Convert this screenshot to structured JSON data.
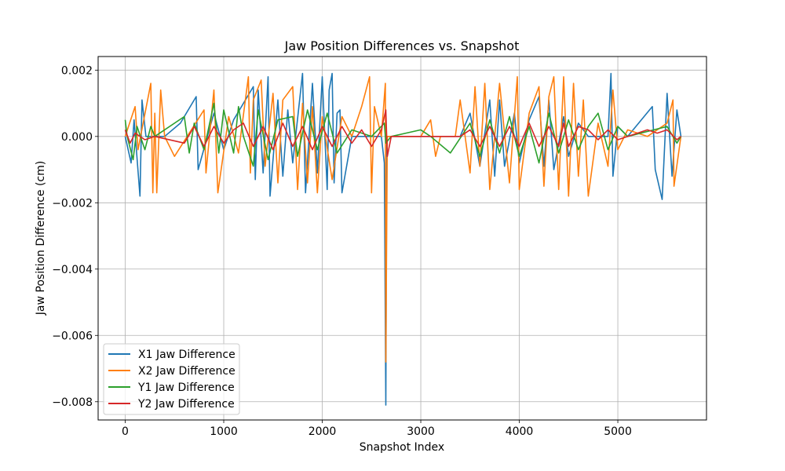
{
  "chart_data": {
    "type": "line",
    "title": "Jaw Position Differences vs. Snapshot",
    "xlabel": "Snapshot Index",
    "ylabel": "Jaw Position Difference (cm)",
    "xlim": [
      -275,
      5900
    ],
    "ylim": [
      -0.00855,
      0.00241
    ],
    "grid": true,
    "legend_position": "lower-left",
    "x_ticks": [
      0,
      1000,
      2000,
      3000,
      4000,
      5000
    ],
    "x_tick_labels": [
      "0",
      "1000",
      "2000",
      "3000",
      "4000",
      "5000"
    ],
    "y_ticks": [
      0.002,
      0.0,
      -0.002,
      -0.004,
      -0.006,
      -0.008
    ],
    "y_tick_labels": [
      "0.002",
      "0.000",
      "−0.002",
      "−0.004",
      "−0.006",
      "−0.008"
    ],
    "series": [
      {
        "name": "X1 Jaw Difference",
        "color": "#1f77b4",
        "points": [
          [
            0,
            0.0
          ],
          [
            60,
            -0.0008
          ],
          [
            90,
            0.0005
          ],
          [
            150,
            -0.0018
          ],
          [
            170,
            0.0011
          ],
          [
            210,
            0.0
          ],
          [
            400,
            0.0
          ],
          [
            560,
            0.0004
          ],
          [
            720,
            0.0012
          ],
          [
            740,
            -0.001
          ],
          [
            900,
            0.0007
          ],
          [
            1000,
            -0.0004
          ],
          [
            1100,
            0.0005
          ],
          [
            1300,
            0.0015
          ],
          [
            1320,
            -0.0013
          ],
          [
            1350,
            0.0014
          ],
          [
            1400,
            -0.0011
          ],
          [
            1450,
            0.0018
          ],
          [
            1470,
            -0.0018
          ],
          [
            1550,
            0.0011
          ],
          [
            1600,
            -0.0012
          ],
          [
            1650,
            0.0008
          ],
          [
            1700,
            -0.0008
          ],
          [
            1800,
            0.0019
          ],
          [
            1830,
            -0.0017
          ],
          [
            1900,
            0.0016
          ],
          [
            1950,
            -0.0011
          ],
          [
            2000,
            0.0018
          ],
          [
            2050,
            -0.0016
          ],
          [
            2070,
            0.0014
          ],
          [
            2100,
            0.0019
          ],
          [
            2120,
            -0.0014
          ],
          [
            2150,
            0.0007
          ],
          [
            2180,
            0.0008
          ],
          [
            2200,
            -0.0017
          ],
          [
            2300,
            0.0
          ],
          [
            2600,
            0.0
          ],
          [
            2630,
            -0.0008
          ],
          [
            2645,
            -0.0081
          ],
          [
            2655,
            0.0
          ],
          [
            2900,
            0.0
          ],
          [
            3400,
            0.0
          ],
          [
            3500,
            0.0007
          ],
          [
            3600,
            -0.0009
          ],
          [
            3700,
            0.0011
          ],
          [
            3750,
            -0.0012
          ],
          [
            3800,
            0.0011
          ],
          [
            3850,
            -0.0009
          ],
          [
            3950,
            0.0007
          ],
          [
            4000,
            -0.0008
          ],
          [
            4100,
            0.0005
          ],
          [
            4200,
            0.0012
          ],
          [
            4250,
            -0.0009
          ],
          [
            4300,
            0.0011
          ],
          [
            4350,
            -0.001
          ],
          [
            4450,
            0.0006
          ],
          [
            4500,
            -0.0006
          ],
          [
            4600,
            0.0004
          ],
          [
            4700,
            0.0
          ],
          [
            4900,
            0.0
          ],
          [
            4930,
            0.0019
          ],
          [
            4950,
            -0.0012
          ],
          [
            5000,
            0.0003
          ],
          [
            5100,
            0.0
          ],
          [
            5350,
            0.0009
          ],
          [
            5380,
            -0.001
          ],
          [
            5450,
            -0.0019
          ],
          [
            5500,
            0.0013
          ],
          [
            5550,
            -0.0012
          ],
          [
            5600,
            0.0008
          ],
          [
            5640,
            0.0
          ]
        ]
      },
      {
        "name": "X2 Jaw Difference",
        "color": "#ff7f0e",
        "points": [
          [
            0,
            0.0
          ],
          [
            100,
            0.0009
          ],
          [
            130,
            -0.0004
          ],
          [
            260,
            0.0016
          ],
          [
            280,
            -0.0017
          ],
          [
            300,
            0.0007
          ],
          [
            320,
            -0.0017
          ],
          [
            360,
            0.0014
          ],
          [
            400,
            0.0
          ],
          [
            500,
            -0.0006
          ],
          [
            800,
            0.0008
          ],
          [
            820,
            -0.0011
          ],
          [
            900,
            0.0014
          ],
          [
            940,
            -0.0017
          ],
          [
            1050,
            0.0006
          ],
          [
            1150,
            -0.0005
          ],
          [
            1250,
            0.0018
          ],
          [
            1270,
            -0.0011
          ],
          [
            1300,
            0.0011
          ],
          [
            1380,
            0.0017
          ],
          [
            1420,
            -0.0009
          ],
          [
            1500,
            0.0013
          ],
          [
            1550,
            -0.0014
          ],
          [
            1600,
            0.0011
          ],
          [
            1700,
            0.0015
          ],
          [
            1750,
            -0.0016
          ],
          [
            1800,
            0.001
          ],
          [
            1850,
            -0.0014
          ],
          [
            1900,
            0.0009
          ],
          [
            1950,
            -0.0017
          ],
          [
            2000,
            0.0006
          ],
          [
            2100,
            -0.0013
          ],
          [
            2200,
            0.0006
          ],
          [
            2300,
            0.0
          ],
          [
            2400,
            0.0009
          ],
          [
            2480,
            0.0018
          ],
          [
            2500,
            -0.0017
          ],
          [
            2530,
            0.0009
          ],
          [
            2600,
            0.0
          ],
          [
            2640,
            0.0016
          ],
          [
            2645,
            -0.0068
          ],
          [
            2660,
            0.0
          ],
          [
            3000,
            0.0
          ],
          [
            3100,
            0.0005
          ],
          [
            3150,
            -0.0006
          ],
          [
            3200,
            0.0
          ],
          [
            3350,
            0.0
          ],
          [
            3400,
            0.0011
          ],
          [
            3500,
            -0.0011
          ],
          [
            3550,
            0.0015
          ],
          [
            3600,
            -0.0009
          ],
          [
            3650,
            0.0016
          ],
          [
            3700,
            -0.0016
          ],
          [
            3800,
            0.0016
          ],
          [
            3900,
            -0.0014
          ],
          [
            3980,
            0.0018
          ],
          [
            4000,
            -0.0016
          ],
          [
            4100,
            0.0007
          ],
          [
            4200,
            0.0015
          ],
          [
            4250,
            -0.0015
          ],
          [
            4300,
            0.0012
          ],
          [
            4350,
            0.0018
          ],
          [
            4400,
            -0.0016
          ],
          [
            4450,
            0.0018
          ],
          [
            4500,
            -0.0018
          ],
          [
            4550,
            0.0016
          ],
          [
            4600,
            -0.0012
          ],
          [
            4650,
            0.0011
          ],
          [
            4700,
            -0.0018
          ],
          [
            4800,
            0.0004
          ],
          [
            4900,
            -0.0009
          ],
          [
            4950,
            0.0014
          ],
          [
            5000,
            -0.0004
          ],
          [
            5100,
            0.0002
          ],
          [
            5300,
            0.0
          ],
          [
            5500,
            0.0004
          ],
          [
            5560,
            0.0011
          ],
          [
            5570,
            -0.0015
          ],
          [
            5640,
            0.0
          ]
        ]
      },
      {
        "name": "Y1 Jaw Difference",
        "color": "#2ca02c",
        "points": [
          [
            0,
            0.0005
          ],
          [
            20,
            0.0
          ],
          [
            80,
            -0.0007
          ],
          [
            120,
            0.0003
          ],
          [
            200,
            -0.0004
          ],
          [
            260,
            0.0003
          ],
          [
            300,
            0.0
          ],
          [
            600,
            0.0006
          ],
          [
            650,
            -0.0005
          ],
          [
            700,
            0.0004
          ],
          [
            800,
            -0.0004
          ],
          [
            900,
            0.001
          ],
          [
            950,
            -0.0005
          ],
          [
            1000,
            0.0008
          ],
          [
            1100,
            -0.0005
          ],
          [
            1150,
            0.0009
          ],
          [
            1200,
            0.0
          ],
          [
            1300,
            -0.0009
          ],
          [
            1350,
            0.0008
          ],
          [
            1450,
            -0.0007
          ],
          [
            1550,
            0.0005
          ],
          [
            1700,
            0.0006
          ],
          [
            1750,
            -0.0006
          ],
          [
            1850,
            0.0008
          ],
          [
            1950,
            -0.0004
          ],
          [
            2050,
            0.0007
          ],
          [
            2150,
            -0.0005
          ],
          [
            2300,
            0.0002
          ],
          [
            2500,
            0.0
          ],
          [
            2630,
            0.0004
          ],
          [
            2645,
            -0.0002
          ],
          [
            2700,
            0.0
          ],
          [
            3000,
            0.0002
          ],
          [
            3100,
            0.0
          ],
          [
            3300,
            -0.0005
          ],
          [
            3500,
            0.0004
          ],
          [
            3600,
            -0.0006
          ],
          [
            3700,
            0.0005
          ],
          [
            3800,
            -0.0005
          ],
          [
            3900,
            0.0006
          ],
          [
            4000,
            -0.0006
          ],
          [
            4100,
            0.0003
          ],
          [
            4200,
            -0.0008
          ],
          [
            4300,
            0.0007
          ],
          [
            4400,
            -0.0005
          ],
          [
            4500,
            0.0005
          ],
          [
            4600,
            -0.0004
          ],
          [
            4700,
            0.0003
          ],
          [
            4800,
            0.0007
          ],
          [
            4900,
            -0.0004
          ],
          [
            5000,
            0.0003
          ],
          [
            5100,
            0.0
          ],
          [
            5500,
            0.0003
          ],
          [
            5600,
            -0.0002
          ],
          [
            5640,
            0.0
          ]
        ]
      },
      {
        "name": "Y2 Jaw Difference",
        "color": "#d62728",
        "points": [
          [
            0,
            0.0002
          ],
          [
            50,
            -0.0002
          ],
          [
            100,
            0.0001
          ],
          [
            200,
            -0.0001
          ],
          [
            300,
            0.0
          ],
          [
            600,
            -0.0002
          ],
          [
            700,
            0.0003
          ],
          [
            800,
            -0.0003
          ],
          [
            900,
            0.0003
          ],
          [
            1000,
            -0.0002
          ],
          [
            1100,
            0.0002
          ],
          [
            1200,
            0.0004
          ],
          [
            1300,
            -0.0003
          ],
          [
            1400,
            0.0003
          ],
          [
            1500,
            -0.0004
          ],
          [
            1600,
            0.0004
          ],
          [
            1700,
            -0.0003
          ],
          [
            1800,
            0.0003
          ],
          [
            1900,
            -0.0004
          ],
          [
            2000,
            0.0003
          ],
          [
            2100,
            -0.0003
          ],
          [
            2200,
            0.0003
          ],
          [
            2300,
            -0.0002
          ],
          [
            2400,
            0.0002
          ],
          [
            2500,
            -0.0003
          ],
          [
            2600,
            0.0002
          ],
          [
            2645,
            0.0008
          ],
          [
            2660,
            -0.0006
          ],
          [
            2700,
            0.0
          ],
          [
            3000,
            0.0
          ],
          [
            3400,
            0.0
          ],
          [
            3500,
            0.0002
          ],
          [
            3600,
            -0.0003
          ],
          [
            3700,
            0.0003
          ],
          [
            3800,
            -0.0003
          ],
          [
            3900,
            0.0003
          ],
          [
            4000,
            -0.0003
          ],
          [
            4100,
            0.0004
          ],
          [
            4200,
            -0.0003
          ],
          [
            4300,
            0.0003
          ],
          [
            4400,
            -0.0003
          ],
          [
            4450,
            0.0004
          ],
          [
            4500,
            -0.0003
          ],
          [
            4600,
            0.0003
          ],
          [
            4700,
            0.0002
          ],
          [
            4800,
            -0.0001
          ],
          [
            4900,
            0.0002
          ],
          [
            5000,
            -0.0001
          ],
          [
            5300,
            0.0002
          ],
          [
            5400,
            0.0001
          ],
          [
            5500,
            0.0002
          ],
          [
            5600,
            -0.0001
          ],
          [
            5640,
            0.0
          ]
        ]
      }
    ]
  }
}
